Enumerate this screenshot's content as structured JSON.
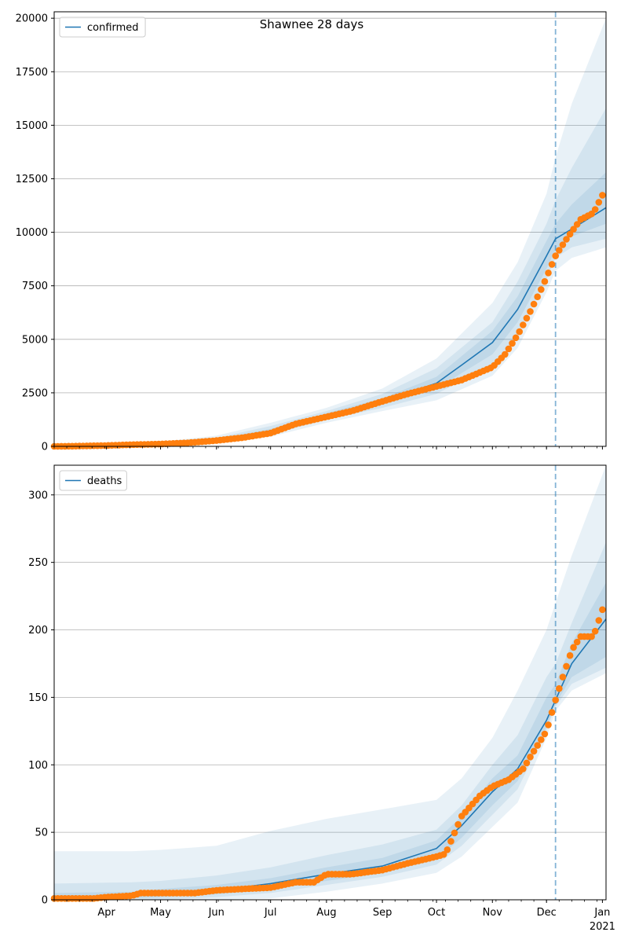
{
  "figure_title": "Shawnee 28 days",
  "colors": {
    "model_line": "#1f77b4",
    "observed": "#ff7f0e",
    "band": "#1f77b4",
    "grid": "#b0b0b0"
  },
  "chart_data": [
    {
      "type": "line",
      "legend": [
        "confirmed"
      ],
      "legend_placement": "upper-left",
      "grid": "y-major",
      "ylim": [
        0,
        20300
      ],
      "yticks": [
        0,
        2500,
        5000,
        7500,
        10000,
        12500,
        15000,
        17500,
        20000
      ],
      "ytick_labels": [
        "0",
        "2500",
        "5000",
        "7500",
        "10000",
        "12500",
        "15000",
        "17500",
        "20000"
      ],
      "xlim": [
        "2020-03-03",
        "2021-01-03"
      ],
      "xticks": [
        "2020-04-01",
        "2020-05-01",
        "2020-06-01",
        "2020-07-01",
        "2020-08-01",
        "2020-09-01",
        "2020-10-01",
        "2020-11-01",
        "2020-12-01",
        "2021-01-01"
      ],
      "xtick_labels": [
        "Apr",
        "May",
        "Jun",
        "Jul",
        "Aug",
        "Sep",
        "Oct",
        "Nov",
        "Dec",
        "Jan"
      ],
      "x_year_label": "2021",
      "forecast_start": "2020-12-06",
      "model": {
        "dates": [
          "2020-03-03",
          "2020-04-01",
          "2020-05-01",
          "2020-06-01",
          "2020-07-01",
          "2020-08-01",
          "2020-09-01",
          "2020-10-01",
          "2020-10-15",
          "2020-11-01",
          "2020-11-15",
          "2020-12-01",
          "2020-12-06",
          "2020-12-15",
          "2021-01-03"
        ],
        "values": [
          0,
          20,
          80,
          290,
          720,
          1450,
          2100,
          2950,
          3800,
          4850,
          6400,
          8900,
          9700,
          10150,
          11150
        ]
      },
      "bands": [
        {
          "dates": [
            "2020-03-03",
            "2020-05-01",
            "2020-06-01",
            "2020-07-01",
            "2020-08-01",
            "2020-09-01",
            "2020-10-01",
            "2020-11-01",
            "2020-11-15",
            "2020-12-01",
            "2020-12-06",
            "2020-12-15",
            "2021-01-03"
          ],
          "lower": [
            0,
            30,
            180,
            450,
            1100,
            1650,
            2150,
            3300,
            4600,
            7200,
            8200,
            8800,
            9300
          ],
          "upper": [
            60,
            220,
            500,
            1100,
            1800,
            2700,
            4100,
            6700,
            8600,
            11800,
            13500,
            16000,
            20000
          ]
        },
        {
          "dates": [
            "2020-03-03",
            "2020-05-01",
            "2020-06-01",
            "2020-07-01",
            "2020-08-01",
            "2020-09-01",
            "2020-10-01",
            "2020-11-01",
            "2020-11-15",
            "2020-12-01",
            "2020-12-06",
            "2020-12-15",
            "2021-01-03"
          ],
          "lower": [
            0,
            45,
            220,
            550,
            1250,
            1800,
            2450,
            3800,
            5200,
            7800,
            8800,
            9300,
            9700
          ],
          "upper": [
            40,
            160,
            400,
            950,
            1650,
            2450,
            3650,
            5800,
            7700,
            10400,
            11500,
            13000,
            15800
          ]
        },
        {
          "dates": [
            "2020-03-03",
            "2020-05-01",
            "2020-06-01",
            "2020-07-01",
            "2020-08-01",
            "2020-09-01",
            "2020-10-01",
            "2020-11-01",
            "2020-11-15",
            "2020-12-01",
            "2020-12-06",
            "2020-12-15",
            "2021-01-03"
          ],
          "lower": [
            0,
            60,
            255,
            640,
            1350,
            1950,
            2700,
            4300,
            5800,
            8300,
            9200,
            9800,
            10400
          ],
          "upper": [
            25,
            110,
            340,
            820,
            1550,
            2250,
            3250,
            5400,
            7000,
            9600,
            10400,
            11300,
            12800
          ]
        }
      ],
      "observed": {
        "dates": [
          "2020-03-03",
          "2020-03-15",
          "2020-04-01",
          "2020-04-15",
          "2020-05-01",
          "2020-05-15",
          "2020-06-01",
          "2020-06-15",
          "2020-07-01",
          "2020-07-15",
          "2020-08-01",
          "2020-08-15",
          "2020-09-01",
          "2020-09-15",
          "2020-10-01",
          "2020-10-15",
          "2020-11-01",
          "2020-11-08",
          "2020-11-15",
          "2020-11-22",
          "2020-11-29",
          "2020-12-06",
          "2020-12-13",
          "2020-12-20",
          "2020-12-27",
          "2021-01-02"
        ],
        "values": [
          0,
          10,
          40,
          80,
          110,
          160,
          270,
          400,
          620,
          1050,
          1380,
          1650,
          2100,
          2450,
          2800,
          3100,
          3700,
          4300,
          5200,
          6300,
          7500,
          8900,
          9800,
          10600,
          10900,
          11900
        ]
      }
    },
    {
      "type": "line",
      "legend": [
        "deaths"
      ],
      "legend_placement": "upper-left",
      "grid": "y-major",
      "ylim": [
        0,
        322
      ],
      "yticks": [
        0,
        50,
        100,
        150,
        200,
        250,
        300
      ],
      "ytick_labels": [
        "0",
        "50",
        "100",
        "150",
        "200",
        "250",
        "300"
      ],
      "xlim": [
        "2020-03-03",
        "2021-01-03"
      ],
      "xticks": [
        "2020-04-01",
        "2020-05-01",
        "2020-06-01",
        "2020-07-01",
        "2020-08-01",
        "2020-09-01",
        "2020-10-01",
        "2020-11-01",
        "2020-12-01",
        "2021-01-01"
      ],
      "xtick_labels": [
        "Apr",
        "May",
        "Jun",
        "Jul",
        "Aug",
        "Sep",
        "Oct",
        "Nov",
        "Dec",
        "Jan"
      ],
      "x_year_label": "2021",
      "forecast_start": "2020-12-06",
      "model": {
        "dates": [
          "2020-03-03",
          "2020-04-01",
          "2020-05-01",
          "2020-06-01",
          "2020-07-01",
          "2020-08-01",
          "2020-09-01",
          "2020-10-01",
          "2020-10-15",
          "2020-11-01",
          "2020-11-15",
          "2020-12-01",
          "2020-12-06",
          "2020-12-15",
          "2021-01-03"
        ],
        "values": [
          0,
          2,
          4,
          7,
          12,
          19,
          25,
          38,
          55,
          80,
          97,
          133,
          148,
          175,
          208
        ]
      },
      "bands": [
        {
          "dates": [
            "2020-03-03",
            "2020-04-15",
            "2020-05-01",
            "2020-06-01",
            "2020-07-01",
            "2020-08-01",
            "2020-09-01",
            "2020-10-01",
            "2020-10-15",
            "2020-11-01",
            "2020-11-15",
            "2020-12-01",
            "2020-12-06",
            "2020-12-15",
            "2021-01-03"
          ],
          "lower": [
            0,
            0,
            0,
            0,
            1,
            6,
            12,
            20,
            32,
            54,
            72,
            120,
            140,
            155,
            168
          ],
          "upper": [
            36,
            36,
            37,
            40,
            51,
            60,
            67,
            74,
            90,
            120,
            155,
            200,
            220,
            255,
            322
          ]
        },
        {
          "dates": [
            "2020-03-03",
            "2020-04-15",
            "2020-05-01",
            "2020-06-01",
            "2020-07-01",
            "2020-08-01",
            "2020-09-01",
            "2020-10-01",
            "2020-10-15",
            "2020-11-01",
            "2020-11-15",
            "2020-12-01",
            "2020-12-06",
            "2020-12-15",
            "2021-01-03"
          ],
          "lower": [
            0,
            0,
            0,
            2,
            5,
            11,
            17,
            26,
            40,
            63,
            82,
            126,
            143,
            160,
            172
          ],
          "upper": [
            12,
            13,
            14,
            18,
            24,
            33,
            41,
            52,
            70,
            100,
            122,
            165,
            175,
            205,
            265
          ]
        },
        {
          "dates": [
            "2020-03-03",
            "2020-04-15",
            "2020-05-01",
            "2020-06-01",
            "2020-07-01",
            "2020-08-01",
            "2020-09-01",
            "2020-10-01",
            "2020-10-15",
            "2020-11-01",
            "2020-11-15",
            "2020-12-01",
            "2020-12-06",
            "2020-12-15",
            "2021-01-03"
          ],
          "lower": [
            0,
            1,
            2,
            4,
            8,
            14,
            20,
            30,
            46,
            70,
            88,
            128,
            145,
            165,
            180
          ],
          "upper": [
            5,
            6,
            8,
            11,
            16,
            24,
            31,
            44,
            62,
            90,
            107,
            150,
            160,
            190,
            235
          ]
        }
      ],
      "observed": {
        "dates": [
          "2020-03-03",
          "2020-03-25",
          "2020-04-01",
          "2020-04-15",
          "2020-04-20",
          "2020-05-01",
          "2020-05-20",
          "2020-06-01",
          "2020-06-15",
          "2020-07-01",
          "2020-07-15",
          "2020-07-25",
          "2020-08-01",
          "2020-08-15",
          "2020-09-01",
          "2020-09-15",
          "2020-10-01",
          "2020-10-06",
          "2020-10-15",
          "2020-10-25",
          "2020-11-01",
          "2020-11-10",
          "2020-11-18",
          "2020-11-23",
          "2020-12-01",
          "2020-12-06",
          "2020-12-10",
          "2020-12-15",
          "2020-12-20",
          "2020-12-27",
          "2021-01-02"
        ],
        "values": [
          1,
          1,
          2,
          3,
          5,
          5,
          5,
          7,
          8,
          9,
          13,
          13,
          19,
          19,
          22,
          27,
          32,
          34,
          62,
          77,
          84,
          89,
          97,
          108,
          125,
          148,
          165,
          185,
          195,
          195,
          219
        ]
      }
    }
  ]
}
